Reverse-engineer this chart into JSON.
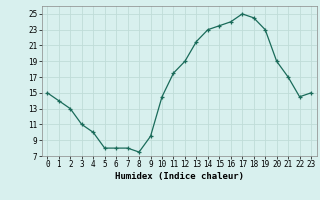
{
  "x": [
    0,
    1,
    2,
    3,
    4,
    5,
    6,
    7,
    8,
    9,
    10,
    11,
    12,
    13,
    14,
    15,
    16,
    17,
    18,
    19,
    20,
    21,
    22,
    23
  ],
  "y": [
    15,
    14,
    13,
    11,
    10,
    8,
    8,
    8,
    7.5,
    9.5,
    14.5,
    17.5,
    19,
    21.5,
    23,
    23.5,
    24,
    25,
    24.5,
    23,
    19,
    17,
    14.5,
    15
  ],
  "line_color": "#1a6b5a",
  "marker_color": "#1a6b5a",
  "bg_color": "#d8f0ee",
  "grid_color": "#c0dcd8",
  "xlabel": "Humidex (Indice chaleur)",
  "ylim": [
    7,
    26
  ],
  "xlim": [
    -0.5,
    23.5
  ],
  "yticks": [
    7,
    9,
    11,
    13,
    15,
    17,
    19,
    21,
    23,
    25
  ],
  "xticks": [
    0,
    1,
    2,
    3,
    4,
    5,
    6,
    7,
    8,
    9,
    10,
    11,
    12,
    13,
    14,
    15,
    16,
    17,
    18,
    19,
    20,
    21,
    22,
    23
  ],
  "tick_fontsize": 5.5,
  "xlabel_fontsize": 6.5
}
